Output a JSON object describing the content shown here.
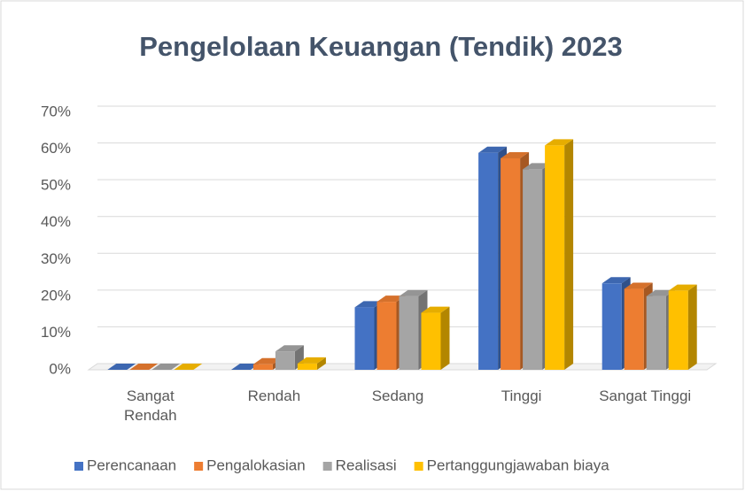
{
  "chart_data": {
    "type": "bar3d",
    "title": "Pengelolaan Keuangan (Tendik) 2023",
    "categories": [
      "Sangat Rendah",
      "Rendah",
      "Sedang",
      "Tinggi",
      "Sangat Tinggi"
    ],
    "series": [
      {
        "name": "Perencanaan",
        "color": "#4472c4",
        "values": [
          0,
          0,
          17,
          59,
          23.5
        ]
      },
      {
        "name": "Pengalokasian",
        "color": "#ed7d31",
        "values": [
          0,
          1.5,
          18.5,
          57.5,
          22
        ]
      },
      {
        "name": "Realisasi",
        "color": "#a5a5a5",
        "values": [
          0,
          5,
          20,
          54.5,
          20
        ]
      },
      {
        "name": "Pertanggungjawaban biaya",
        "color": "#ffc000",
        "values": [
          0,
          1.7,
          15.5,
          61,
          21.5
        ]
      }
    ],
    "ylim": [
      0,
      70
    ],
    "yticks": [
      {
        "value": 0,
        "label": "0%"
      },
      {
        "value": 10,
        "label": "10%"
      },
      {
        "value": 20,
        "label": "20%"
      },
      {
        "value": 30,
        "label": "30%"
      },
      {
        "value": 40,
        "label": "40%"
      },
      {
        "value": 50,
        "label": "50%"
      },
      {
        "value": 60,
        "label": "60%"
      },
      {
        "value": 70,
        "label": "70%"
      }
    ],
    "grid": true,
    "legend": "bottom"
  }
}
